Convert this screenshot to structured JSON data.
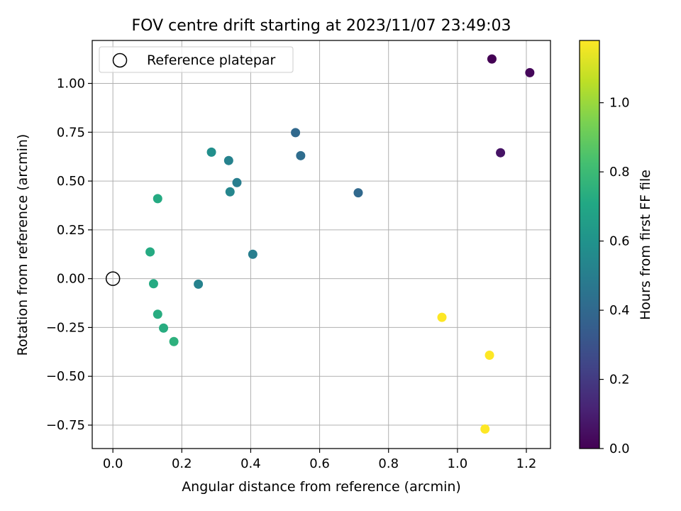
{
  "chart_data": {
    "type": "scatter",
    "title": "FOV centre drift starting at 2023/11/07 23:49:03",
    "xlabel": "Angular distance from reference (arcmin)",
    "ylabel": "Rotation from reference (arcmin)",
    "xlim": [
      -0.06,
      1.27
    ],
    "ylim": [
      -0.87,
      1.22
    ],
    "xticks": [
      0.0,
      0.2,
      0.4,
      0.6,
      0.8,
      1.0,
      1.2
    ],
    "xtick_labels": [
      "0.0",
      "0.2",
      "0.4",
      "0.6",
      "0.8",
      "1.0",
      "1.2"
    ],
    "yticks": [
      -0.75,
      -0.5,
      -0.25,
      0.0,
      0.25,
      0.5,
      0.75,
      1.0
    ],
    "ytick_labels": [
      "−0.75",
      "−0.50",
      "−0.25",
      "0.00",
      "0.25",
      "0.50",
      "0.75",
      "1.00"
    ],
    "grid": true,
    "legend": {
      "placement": "top-left",
      "entries": [
        "Reference platepar"
      ]
    },
    "reference_point": {
      "name": "Reference platepar",
      "x": 0.0,
      "y": 0.0
    },
    "colorbar": {
      "label": "Hours from first FF file",
      "colormap": "viridis",
      "min": 0.0,
      "max": 1.18,
      "ticks": [
        0.0,
        0.2,
        0.4,
        0.6,
        0.8,
        1.0
      ],
      "tick_labels": [
        "0.0",
        "0.2",
        "0.4",
        "0.6",
        "0.8",
        "1.0"
      ]
    },
    "points": [
      {
        "x": 1.1,
        "y": 1.125,
        "hours": 0.0
      },
      {
        "x": 1.21,
        "y": 1.055,
        "hours": 0.02
      },
      {
        "x": 1.125,
        "y": 0.645,
        "hours": 0.06
      },
      {
        "x": 0.712,
        "y": 0.44,
        "hours": 0.4
      },
      {
        "x": 0.53,
        "y": 0.748,
        "hours": 0.4
      },
      {
        "x": 0.545,
        "y": 0.63,
        "hours": 0.42
      },
      {
        "x": 0.406,
        "y": 0.125,
        "hours": 0.5
      },
      {
        "x": 0.36,
        "y": 0.492,
        "hours": 0.5
      },
      {
        "x": 0.336,
        "y": 0.605,
        "hours": 0.52
      },
      {
        "x": 0.34,
        "y": 0.445,
        "hours": 0.54
      },
      {
        "x": 0.248,
        "y": -0.028,
        "hours": 0.52
      },
      {
        "x": 0.286,
        "y": 0.648,
        "hours": 0.58
      },
      {
        "x": 0.13,
        "y": 0.41,
        "hours": 0.72
      },
      {
        "x": 0.108,
        "y": 0.137,
        "hours": 0.72
      },
      {
        "x": 0.118,
        "y": -0.026,
        "hours": 0.72
      },
      {
        "x": 0.13,
        "y": -0.182,
        "hours": 0.73
      },
      {
        "x": 0.147,
        "y": -0.253,
        "hours": 0.73
      },
      {
        "x": 0.177,
        "y": -0.322,
        "hours": 0.75
      },
      {
        "x": 0.955,
        "y": -0.198,
        "hours": 1.18
      },
      {
        "x": 1.093,
        "y": -0.392,
        "hours": 1.18
      },
      {
        "x": 1.08,
        "y": -0.77,
        "hours": 1.18
      }
    ]
  }
}
